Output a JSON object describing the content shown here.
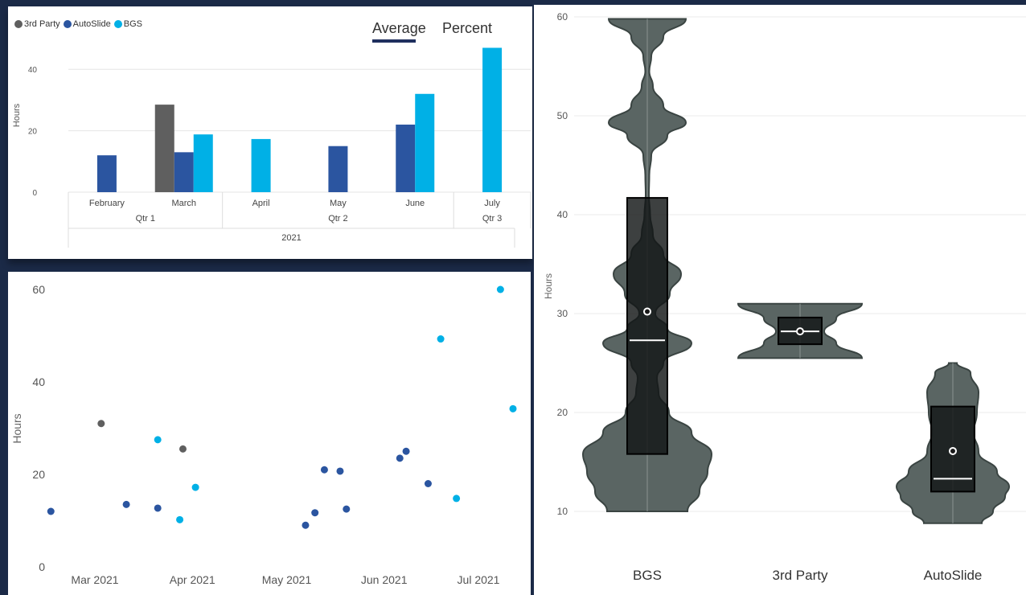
{
  "colors": {
    "third_party": "#5f5f5f",
    "autoslide": "#2b55a0",
    "bgs": "#00b0e6"
  },
  "legend": [
    {
      "label": "3rd Party",
      "color": "#5f5f5f"
    },
    {
      "label": "AutoSlide",
      "color": "#2b55a0"
    },
    {
      "label": "BGS",
      "color": "#00b0e6"
    }
  ],
  "tabs": {
    "average": "Average",
    "percent": "Percent"
  },
  "chart_data": [
    {
      "type": "bar",
      "title": "",
      "ylabel": "Hours",
      "ylim": [
        0,
        50
      ],
      "yticks": [
        0,
        20,
        40
      ],
      "categories": [
        "February",
        "March",
        "April",
        "May",
        "June",
        "July"
      ],
      "quarters": [
        {
          "label": "Qtr 1",
          "months": 2
        },
        {
          "label": "Qtr 2",
          "months": 3
        },
        {
          "label": "Qtr 3",
          "months": 1
        }
      ],
      "year": "2021",
      "series": [
        {
          "name": "3rd Party",
          "values": [
            null,
            28.5,
            null,
            null,
            null,
            null
          ]
        },
        {
          "name": "AutoSlide",
          "values": [
            12,
            13,
            null,
            15,
            22,
            null
          ]
        },
        {
          "name": "BGS",
          "values": [
            null,
            18.8,
            17.3,
            null,
            32,
            47
          ]
        }
      ]
    },
    {
      "type": "scatter",
      "ylabel": "Hours",
      "ylim": [
        0,
        60
      ],
      "yticks": [
        0,
        20,
        40,
        60
      ],
      "xticks": [
        "Mar 2021",
        "Apr 2021",
        "May 2021",
        "Jun 2021",
        "Jul 2021"
      ],
      "xtick_dates": [
        "2021-03-01",
        "2021-04-01",
        "2021-05-01",
        "2021-06-01",
        "2021-07-01"
      ],
      "series": [
        {
          "name": "3rd Party",
          "points": [
            {
              "x": "2021-03-03",
              "y": 31
            },
            {
              "x": "2021-03-29",
              "y": 25.5
            }
          ]
        },
        {
          "name": "AutoSlide",
          "points": [
            {
              "x": "2021-02-15",
              "y": 12
            },
            {
              "x": "2021-03-11",
              "y": 13.5
            },
            {
              "x": "2021-03-21",
              "y": 12.7
            },
            {
              "x": "2021-05-07",
              "y": 9
            },
            {
              "x": "2021-05-10",
              "y": 11.7
            },
            {
              "x": "2021-05-13",
              "y": 21
            },
            {
              "x": "2021-05-18",
              "y": 20.7
            },
            {
              "x": "2021-05-20",
              "y": 12.5
            },
            {
              "x": "2021-06-06",
              "y": 23.5
            },
            {
              "x": "2021-06-08",
              "y": 25
            },
            {
              "x": "2021-06-15",
              "y": 18
            }
          ]
        },
        {
          "name": "BGS",
          "points": [
            {
              "x": "2021-03-21",
              "y": 27.5
            },
            {
              "x": "2021-03-28",
              "y": 10.2
            },
            {
              "x": "2021-04-02",
              "y": 17.2
            },
            {
              "x": "2021-06-19",
              "y": 49.3
            },
            {
              "x": "2021-06-24",
              "y": 14.8
            },
            {
              "x": "2021-07-08",
              "y": 60
            },
            {
              "x": "2021-07-12",
              "y": 34.2
            }
          ]
        }
      ]
    },
    {
      "type": "violin",
      "ylabel": "Hours",
      "ylim": [
        8,
        61
      ],
      "yticks": [
        10,
        20,
        30,
        40,
        50,
        60
      ],
      "categories": [
        "BGS",
        "3rd Party",
        "AutoSlide"
      ],
      "boxes": [
        {
          "category": "BGS",
          "q1": 15.8,
          "median": 27.3,
          "q3": 41.7,
          "mean": 30.2
        },
        {
          "category": "3rd Party",
          "q1": 26.9,
          "median": 28.2,
          "q3": 29.6,
          "mean": 28.2
        },
        {
          "category": "AutoSlide",
          "q1": 12,
          "median": 13.3,
          "q3": 20.6,
          "mean": 16.1
        }
      ],
      "violins": [
        {
          "category": "BGS",
          "profile": [
            [
              10,
              0.5
            ],
            [
              12,
              0.65
            ],
            [
              14,
              0.75
            ],
            [
              15.8,
              0.8
            ],
            [
              18,
              0.55
            ],
            [
              20,
              0.27
            ],
            [
              22,
              0.14
            ],
            [
              23.5,
              0.12
            ],
            [
              25,
              0.2
            ],
            [
              27,
              0.55
            ],
            [
              28.5,
              0.25
            ],
            [
              30,
              0.1
            ],
            [
              32,
              0.28
            ],
            [
              34,
              0.42
            ],
            [
              36,
              0.2
            ],
            [
              38,
              0.07
            ],
            [
              40,
              0.035
            ],
            [
              42,
              0.02
            ],
            [
              44,
              0.025
            ],
            [
              46,
              0.05
            ],
            [
              48,
              0.25
            ],
            [
              49.3,
              0.48
            ],
            [
              51,
              0.2
            ],
            [
              53,
              0.07
            ],
            [
              54.5,
              0.025
            ],
            [
              56,
              0.05
            ],
            [
              58,
              0.2
            ],
            [
              59.8,
              0.48
            ]
          ]
        },
        {
          "category": "3rd Party",
          "profile": [
            [
              25.5,
              0.77
            ],
            [
              27,
              0.45
            ],
            [
              28.2,
              0.3
            ],
            [
              29.5,
              0.45
            ],
            [
              31,
              0.77
            ]
          ]
        },
        {
          "category": "AutoSlide",
          "profile": [
            [
              8.8,
              0.36
            ],
            [
              10,
              0.5
            ],
            [
              11.5,
              0.65
            ],
            [
              12.5,
              0.7
            ],
            [
              14,
              0.55
            ],
            [
              16,
              0.32
            ],
            [
              18,
              0.26
            ],
            [
              20,
              0.3
            ],
            [
              22,
              0.32
            ],
            [
              24,
              0.22
            ],
            [
              25,
              0.05
            ]
          ]
        }
      ]
    }
  ]
}
